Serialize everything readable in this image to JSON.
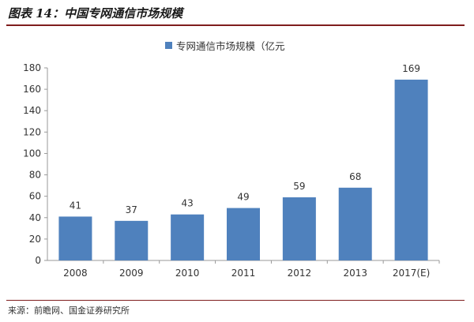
{
  "header": {
    "title": "图表 14：中国专网通信市场规模"
  },
  "footer": {
    "source": "来源：前瞻网、国金证券研究所"
  },
  "colors": {
    "bar": "#4f81bd",
    "title_rule": "#7f1d1d",
    "grid": "#d9d9d9",
    "axis": "#999999"
  },
  "chart_data": {
    "type": "bar",
    "title": "",
    "xlabel": "",
    "ylabel": "",
    "categories": [
      "2008",
      "2009",
      "2010",
      "2011",
      "2012",
      "2013",
      "2017(E)"
    ],
    "series": [
      {
        "name": "专网通信市场规模（亿元",
        "values": [
          41,
          37,
          43,
          49,
          59,
          68,
          169
        ]
      }
    ],
    "data_labels": [
      "41",
      "37",
      "43",
      "49",
      "59",
      "68",
      "169"
    ],
    "ylim": [
      0,
      180
    ],
    "yticks": [
      "0",
      "20",
      "40",
      "60",
      "80",
      "100",
      "120",
      "140",
      "160",
      "180"
    ],
    "grid": false,
    "legend_position": "top-center"
  }
}
